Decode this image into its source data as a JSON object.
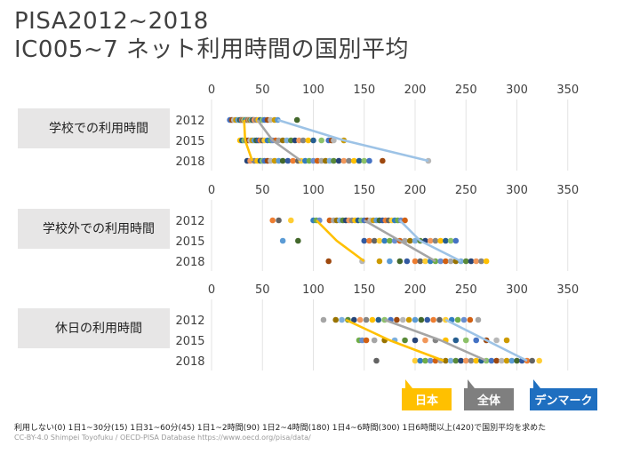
{
  "title": {
    "line1": "PISA2012~2018",
    "line2": "IC005~7 ネット利用時間の国別平均"
  },
  "footnote": "利用しない(0) 1日1~30分(15) 1日31~60分(45) 1日1~2時間(90) 1日2~4時間(180) 1日4~6時間(300) 1日6時間以上(420)で国別平均を求めた",
  "credit": "CC-BY-4.0 Shimpei Toyofuku / OECD-PISA Database https://www.oecd.org/pisa/data/",
  "colors": {
    "japan": "#FFC000",
    "overall": "#A5A5A5",
    "denmark": "#9DC3E6",
    "panel_label_bg": "#E7E6E6",
    "legend_japan_bg": "#FFC000",
    "legend_overall_bg": "#7F7F7F",
    "legend_denmark_bg": "#1F6FC0",
    "grid": "#E3E3E3",
    "dot_palette": [
      "#4472C4",
      "#ED7D31",
      "#A5A5A5",
      "#FFC000",
      "#5B9BD5",
      "#70AD47",
      "#264478",
      "#9E480E",
      "#636363",
      "#997300",
      "#255E91",
      "#43682B",
      "#698ED0",
      "#F1975A",
      "#B7B7B7",
      "#FFCD33",
      "#7CAFDD",
      "#8CC168",
      "#335AA1",
      "#D26012",
      "#848484",
      "#CC9A00",
      "#327DC2",
      "#5A8A39"
    ]
  },
  "legend": [
    "日本",
    "全体",
    "デンマーク"
  ],
  "chart_data": [
    {
      "type": "scatter",
      "panel_label": "学校での利用時間",
      "x_ticks": [
        0,
        50,
        100,
        150,
        200,
        250,
        300,
        350
      ],
      "xlim": [
        0,
        350
      ],
      "years": [
        "2012",
        "2015",
        "2018"
      ],
      "dots": {
        "2012": [
          18,
          20,
          22,
          24,
          26,
          28,
          29,
          30,
          31,
          32,
          33,
          34,
          35,
          36,
          37,
          38,
          39,
          40,
          41,
          42,
          44,
          46,
          48,
          50,
          52,
          55,
          58,
          62,
          65,
          84
        ],
        "2015": [
          28,
          30,
          32,
          34,
          36,
          38,
          40,
          42,
          44,
          46,
          48,
          50,
          52,
          55,
          58,
          60,
          63,
          66,
          70,
          74,
          78,
          82,
          86,
          90,
          95,
          100,
          108,
          115,
          118,
          120,
          130
        ],
        "2018": [
          35,
          38,
          42,
          45,
          48,
          50,
          52,
          55,
          58,
          62,
          66,
          70,
          75,
          80,
          85,
          88,
          92,
          96,
          100,
          104,
          108,
          112,
          116,
          120,
          125,
          130,
          135,
          140,
          145,
          150,
          155,
          168,
          213
        ]
      },
      "series": [
        {
          "name": "日本",
          "values": [
            32,
            33,
            40
          ]
        },
        {
          "name": "全体",
          "values": [
            45,
            60,
            88
          ]
        },
        {
          "name": "デンマーク",
          "values": [
            65,
            130,
            213
          ]
        }
      ]
    },
    {
      "type": "scatter",
      "panel_label": "学校外での利用時間",
      "x_ticks": [
        0,
        50,
        100,
        150,
        200,
        250,
        300,
        350
      ],
      "xlim": [
        0,
        350
      ],
      "years": [
        "2012",
        "2015",
        "2018"
      ],
      "dots": {
        "2012": [
          60,
          66,
          78,
          100,
          103,
          106,
          116,
          120,
          123,
          126,
          129,
          132,
          135,
          138,
          141,
          144,
          147,
          150,
          153,
          156,
          159,
          162,
          165,
          168,
          171,
          174,
          177,
          180,
          183,
          186,
          190
        ],
        "2015": [
          70,
          85,
          150,
          155,
          160,
          165,
          170,
          175,
          180,
          185,
          190,
          195,
          200,
          205,
          210,
          215,
          220,
          225,
          230,
          235,
          240
        ],
        "2018": [
          115,
          148,
          165,
          175,
          185,
          192,
          200,
          205,
          210,
          215,
          220,
          225,
          230,
          235,
          240,
          245,
          250,
          255,
          260,
          265,
          270
        ]
      },
      "series": [
        {
          "name": "日本",
          "values": [
            103,
            123,
            150
          ]
        },
        {
          "name": "全体",
          "values": [
            150,
            185,
            220
          ]
        },
        {
          "name": "デンマーク",
          "values": [
            185,
            205,
            245
          ]
        }
      ]
    },
    {
      "type": "scatter",
      "panel_label": "休日の利用時間",
      "x_ticks": [
        0,
        50,
        100,
        150,
        200,
        250,
        300,
        350
      ],
      "xlim": [
        0,
        350
      ],
      "years": [
        "2012",
        "2015",
        "2018"
      ],
      "dots": {
        "2012": [
          110,
          122,
          128,
          134,
          140,
          146,
          152,
          158,
          164,
          170,
          176,
          182,
          188,
          194,
          200,
          206,
          212,
          218,
          224,
          230,
          236,
          242,
          248,
          254,
          262
        ],
        "2015": [
          145,
          148,
          152,
          160,
          170,
          180,
          190,
          200,
          210,
          220,
          230,
          240,
          250,
          260,
          270,
          280,
          290
        ],
        "2018": [
          162,
          200,
          205,
          210,
          215,
          220,
          225,
          230,
          235,
          240,
          245,
          250,
          255,
          260,
          265,
          270,
          275,
          280,
          285,
          290,
          295,
          300,
          305,
          310,
          315,
          322
        ]
      },
      "series": [
        {
          "name": "日本",
          "values": [
            132,
            175,
            228
          ]
        },
        {
          "name": "全体",
          "values": [
            170,
            225,
            270
          ]
        },
        {
          "name": "デンマーク",
          "values": [
            230,
            270,
            310
          ]
        }
      ]
    }
  ]
}
